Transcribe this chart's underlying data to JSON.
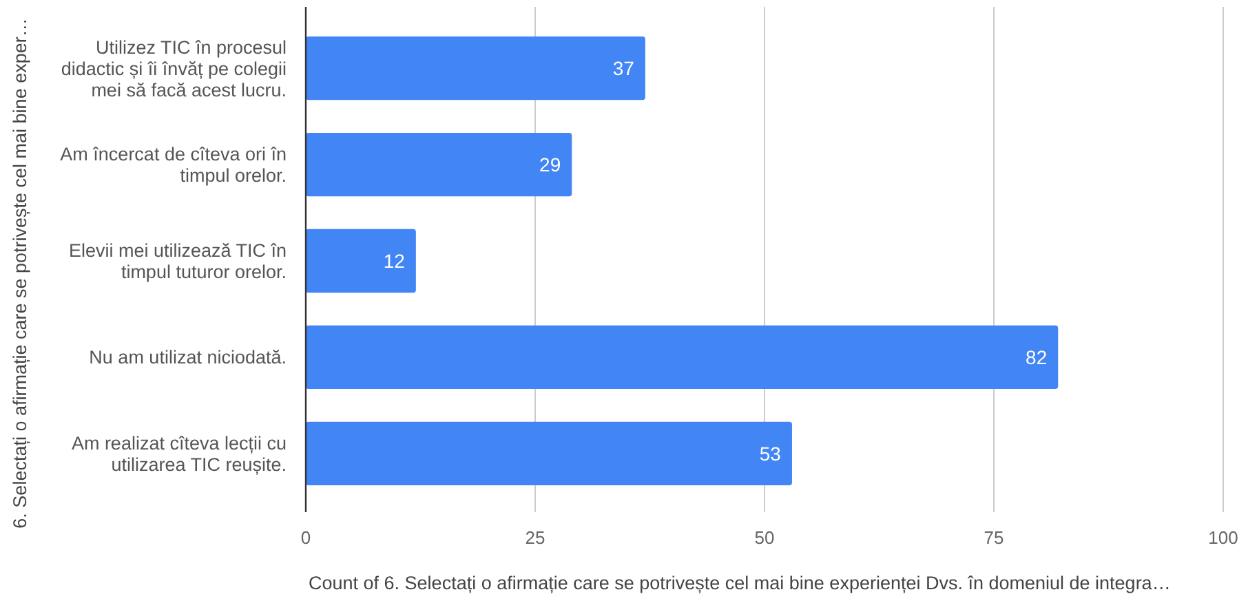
{
  "chart_data": {
    "type": "bar",
    "orientation": "horizontal",
    "xlabel": "Count of 6. Selectați o afirmație care se potrivește cel mai bine experienței Dvs. în domeniul de integra…",
    "ylabel": "6. Selectați o afirmație care se potrivește cel mai bine exper…",
    "categories": [
      "Utilizez TIC în procesul didactic și îi învăț pe colegii mei să facă acest lucru.",
      "Am încercat de cîteva ori în timpul orelor.",
      "Elevii mei utilizează TIC în timpul tuturor orelor.",
      "Nu am utilizat niciodată.",
      "Am realizat cîteva lecții cu utilizarea TIC reușite."
    ],
    "values": [
      37,
      29,
      12,
      82,
      53
    ],
    "color": "#4285f4",
    "xlim": [
      0,
      100
    ],
    "xticks": [
      0,
      25,
      50,
      75,
      100
    ],
    "grid": "x",
    "data_labels": true
  }
}
